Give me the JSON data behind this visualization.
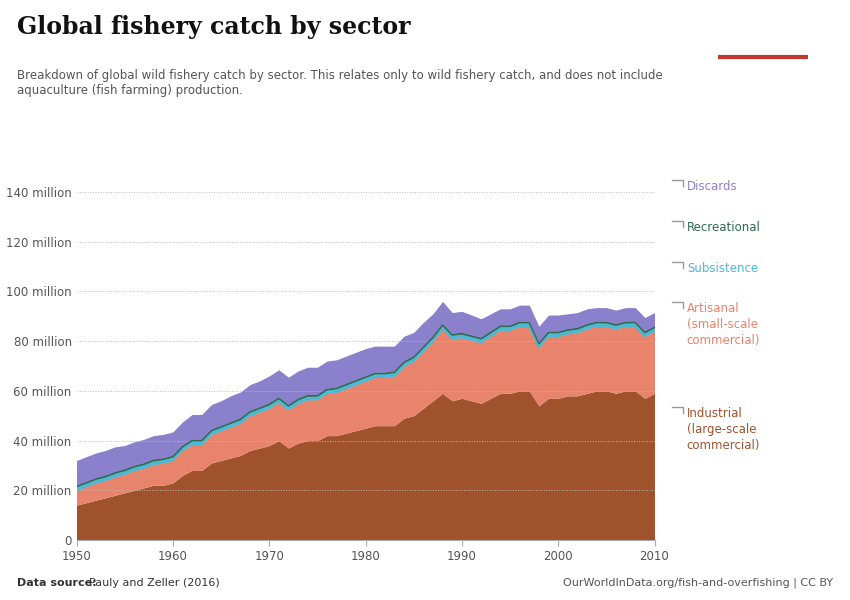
{
  "title": "Global fishery catch by sector",
  "subtitle": "Breakdown of global wild fishery catch by sector. This relates only to wild fishery catch, and does not include\naquaculture (fish farming) production.",
  "source_left": "Data source: Pauly and Zeller (2016)",
  "source_right": "OurWorldInData.org/fish-and-overfishing | CC BY",
  "years": [
    1950,
    1951,
    1952,
    1953,
    1954,
    1955,
    1956,
    1957,
    1958,
    1959,
    1960,
    1961,
    1962,
    1963,
    1964,
    1965,
    1966,
    1967,
    1968,
    1969,
    1970,
    1971,
    1972,
    1973,
    1974,
    1975,
    1976,
    1977,
    1978,
    1979,
    1980,
    1981,
    1982,
    1983,
    1984,
    1985,
    1986,
    1987,
    1988,
    1989,
    1990,
    1991,
    1992,
    1993,
    1994,
    1995,
    1996,
    1997,
    1998,
    1999,
    2000,
    2001,
    2002,
    2003,
    2004,
    2005,
    2006,
    2007,
    2008,
    2009,
    2010
  ],
  "industrial": [
    14.0,
    15.0,
    16.0,
    17.0,
    18.0,
    19.0,
    20.0,
    21.0,
    22.0,
    22.0,
    23.0,
    26.0,
    28.0,
    28.0,
    31.0,
    32.0,
    33.0,
    34.0,
    36.0,
    37.0,
    38.0,
    40.0,
    37.0,
    39.0,
    40.0,
    40.0,
    42.0,
    42.0,
    43.0,
    44.0,
    45.0,
    46.0,
    46.0,
    46.0,
    49.0,
    50.0,
    53.0,
    56.0,
    59.0,
    56.0,
    57.0,
    56.0,
    55.0,
    57.0,
    59.0,
    59.0,
    60.0,
    60.0,
    54.0,
    57.0,
    57.0,
    58.0,
    58.0,
    59.0,
    60.0,
    60.0,
    59.0,
    60.0,
    60.0,
    57.0,
    59.0
  ],
  "artisanal": [
    6.0,
    6.5,
    7.0,
    7.0,
    7.5,
    7.5,
    8.0,
    8.0,
    8.5,
    9.0,
    9.0,
    10.0,
    10.5,
    10.5,
    11.5,
    12.0,
    12.5,
    13.0,
    14.0,
    14.5,
    15.0,
    15.5,
    15.5,
    16.0,
    16.5,
    16.5,
    17.0,
    17.5,
    18.0,
    18.5,
    19.0,
    19.5,
    19.5,
    20.0,
    21.0,
    22.0,
    23.0,
    24.0,
    26.0,
    25.0,
    24.5,
    24.5,
    24.5,
    25.0,
    25.5,
    25.5,
    26.0,
    26.0,
    23.5,
    25.0,
    25.0,
    25.0,
    25.5,
    26.0,
    26.0,
    26.0,
    26.0,
    26.0,
    26.0,
    25.0,
    25.0
  ],
  "subsistence": [
    1.5,
    1.5,
    1.5,
    1.5,
    1.5,
    1.5,
    1.5,
    1.5,
    1.5,
    1.5,
    1.5,
    1.5,
    1.5,
    1.5,
    1.5,
    1.5,
    1.5,
    1.5,
    1.5,
    1.5,
    1.5,
    1.5,
    1.5,
    1.5,
    1.5,
    1.5,
    1.5,
    1.5,
    1.5,
    1.5,
    1.5,
    1.5,
    1.5,
    1.5,
    1.5,
    1.5,
    1.5,
    1.5,
    1.5,
    1.5,
    1.5,
    1.5,
    1.5,
    1.5,
    1.5,
    1.5,
    1.5,
    1.5,
    1.5,
    1.5,
    1.5,
    1.5,
    1.5,
    1.5,
    1.5,
    1.5,
    1.5,
    1.5,
    1.5,
    1.5,
    1.5
  ],
  "recreational": [
    0.5,
    0.5,
    0.5,
    0.5,
    0.5,
    0.5,
    0.5,
    0.5,
    0.5,
    0.5,
    0.5,
    0.5,
    0.5,
    0.5,
    0.5,
    0.5,
    0.5,
    0.5,
    0.5,
    0.5,
    0.5,
    0.5,
    0.5,
    0.5,
    0.5,
    0.5,
    0.5,
    0.5,
    0.5,
    0.5,
    0.5,
    0.5,
    0.5,
    0.5,
    0.5,
    0.5,
    0.5,
    0.5,
    0.5,
    0.5,
    0.5,
    0.5,
    0.5,
    0.5,
    0.5,
    0.5,
    0.5,
    0.5,
    0.5,
    0.5,
    0.5,
    0.5,
    0.5,
    0.5,
    0.5,
    0.5,
    0.5,
    0.5,
    0.5,
    0.5,
    0.5
  ],
  "discards": [
    10.0,
    10.0,
    10.0,
    10.0,
    10.0,
    9.5,
    9.5,
    9.5,
    9.5,
    9.5,
    9.5,
    9.5,
    10.0,
    10.0,
    10.0,
    10.0,
    10.5,
    10.5,
    10.5,
    10.5,
    11.0,
    11.0,
    11.0,
    11.0,
    11.0,
    11.0,
    11.0,
    11.0,
    11.0,
    11.0,
    11.0,
    10.5,
    10.5,
    10.0,
    10.0,
    9.5,
    9.5,
    9.0,
    9.0,
    8.5,
    8.5,
    8.0,
    7.5,
    7.0,
    6.5,
    6.5,
    6.5,
    6.5,
    6.5,
    6.5,
    6.5,
    6.0,
    6.0,
    6.0,
    5.5,
    5.5,
    5.5,
    5.5,
    5.5,
    5.5,
    5.5
  ],
  "color_industrial": "#a0522d",
  "color_artisanal": "#e8836c",
  "color_subsistence": "#4cb8d4",
  "color_recreational": "#2d6a4f",
  "color_discards": "#8b80cc",
  "ylim": [
    0,
    140
  ],
  "yticks": [
    0,
    20,
    40,
    60,
    80,
    100,
    120,
    140
  ],
  "ytick_labels": [
    "0",
    "20 million",
    "40 million",
    "60 million",
    "80 million",
    "100 million",
    "120 million",
    "140 million"
  ],
  "bg_color": "#ffffff",
  "grid_color": "#bbbbbb",
  "owid_box_color": "#1a3a5c",
  "owid_red": "#c0392b"
}
